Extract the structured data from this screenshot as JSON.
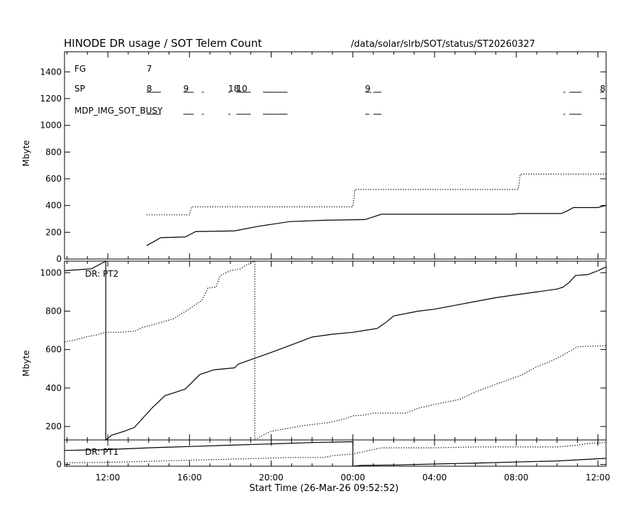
{
  "header": {
    "title": "HINODE DR usage / SOT Telem Count",
    "path": "/data/solar/slrb/SOT/status/ST20260327"
  },
  "x_axis": {
    "label": "Start Time (26-Mar-26 09:52:52)",
    "tick_labels": [
      "12:00",
      "16:00",
      "20:00",
      "00:00",
      "04:00",
      "08:00",
      "12:00"
    ],
    "tick_hours": [
      12,
      16,
      20,
      24,
      28,
      32,
      36
    ],
    "range_hours": [
      9.88,
      36.4
    ]
  },
  "chart_data": [
    {
      "type": "line",
      "panel": "top",
      "ylabel": "Mbyte",
      "ylim": [
        0,
        1550
      ],
      "yticks": [
        0,
        200,
        400,
        600,
        800,
        1000,
        1200,
        1400
      ],
      "grid": false,
      "annotations": {
        "FG": {
          "label": "FG",
          "value_text": "7",
          "value_x_hours": 13.9
        },
        "SP": {
          "label": "SP",
          "items": [
            {
              "text": "8",
              "x_hours": 13.9
            },
            {
              "text": "9",
              "x_hours": 15.7
            },
            {
              "text": "18",
              "x_hours": 17.9
            },
            {
              "text": "10",
              "x_hours": 18.3
            },
            {
              "text": "9",
              "x_hours": 24.6
            },
            {
              "text": "8",
              "x_hours": 36.1
            }
          ]
        },
        "busy_label": "MDP_IMG_SOT_BUSY"
      },
      "series": [
        {
          "style": "solid",
          "points": [
            [
              13.9,
              100
            ],
            [
              14.6,
              160
            ],
            [
              15.8,
              165
            ],
            [
              16.3,
              205
            ],
            [
              18.2,
              210
            ],
            [
              19.4,
              245
            ],
            [
              20.9,
              280
            ],
            [
              22.6,
              290
            ],
            [
              24.6,
              295
            ],
            [
              25.4,
              335
            ],
            [
              31.8,
              335
            ],
            [
              32.1,
              340
            ],
            [
              34.2,
              340
            ],
            [
              34.5,
              360
            ],
            [
              34.8,
              385
            ],
            [
              36.0,
              385
            ],
            [
              36.4,
              400
            ]
          ]
        },
        {
          "style": "dotted",
          "points": [
            [
              13.9,
              330
            ],
            [
              16.0,
              330
            ],
            [
              16.1,
              390
            ],
            [
              24.0,
              390
            ],
            [
              24.1,
              520
            ],
            [
              32.1,
              520
            ],
            [
              32.2,
              635
            ],
            [
              36.4,
              635
            ]
          ]
        }
      ]
    },
    {
      "type": "line",
      "panel": "middle",
      "label": "DR: PT2",
      "ylabel": "Mbyte",
      "ylim": [
        130,
        1060
      ],
      "yticks": [
        200,
        400,
        600,
        800,
        1000
      ],
      "grid": false,
      "series": [
        {
          "style": "solid",
          "points": [
            [
              9.88,
              1010
            ],
            [
              11.2,
              1020
            ],
            [
              11.9,
              1060
            ],
            [
              11.9,
              130
            ],
            [
              12.2,
              155
            ],
            [
              12.8,
              175
            ],
            [
              13.3,
              195
            ],
            [
              14.2,
              300
            ],
            [
              14.8,
              360
            ],
            [
              15.8,
              395
            ],
            [
              16.5,
              470
            ],
            [
              17.2,
              495
            ],
            [
              18.2,
              505
            ],
            [
              18.4,
              525
            ],
            [
              20.0,
              585
            ],
            [
              21.0,
              625
            ],
            [
              22.0,
              665
            ],
            [
              23.0,
              680
            ],
            [
              24.0,
              690
            ],
            [
              24.6,
              700
            ],
            [
              25.2,
              710
            ],
            [
              25.6,
              740
            ],
            [
              26.0,
              775
            ],
            [
              27.2,
              800
            ],
            [
              28.0,
              810
            ],
            [
              29.0,
              830
            ],
            [
              30.0,
              850
            ],
            [
              31.0,
              870
            ],
            [
              32.0,
              885
            ],
            [
              33.0,
              900
            ],
            [
              34.0,
              915
            ],
            [
              34.3,
              925
            ],
            [
              34.6,
              950
            ],
            [
              34.9,
              985
            ],
            [
              35.5,
              990
            ],
            [
              36.0,
              1010
            ],
            [
              36.4,
              1030
            ]
          ]
        },
        {
          "style": "dotted",
          "points": [
            [
              9.88,
              640
            ],
            [
              10.4,
              650
            ],
            [
              10.9,
              665
            ],
            [
              11.4,
              675
            ],
            [
              11.9,
              690
            ],
            [
              12.5,
              690
            ],
            [
              13.3,
              695
            ],
            [
              13.7,
              715
            ],
            [
              14.4,
              735
            ],
            [
              15.2,
              760
            ],
            [
              15.9,
              805
            ],
            [
              16.6,
              855
            ],
            [
              16.9,
              920
            ],
            [
              17.3,
              925
            ],
            [
              17.5,
              985
            ],
            [
              18.0,
              1010
            ],
            [
              18.5,
              1020
            ],
            [
              18.8,
              1040
            ],
            [
              19.2,
              1060
            ],
            [
              19.2,
              130
            ],
            [
              19.6,
              155
            ],
            [
              20.0,
              175
            ],
            [
              20.8,
              190
            ],
            [
              21.6,
              205
            ],
            [
              22.8,
              220
            ],
            [
              23.6,
              240
            ],
            [
              24.0,
              255
            ],
            [
              24.6,
              260
            ],
            [
              25.0,
              270
            ],
            [
              26.6,
              270
            ],
            [
              27.2,
              295
            ],
            [
              28.0,
              315
            ],
            [
              29.2,
              340
            ],
            [
              30.0,
              380
            ],
            [
              31.0,
              420
            ],
            [
              31.4,
              435
            ],
            [
              32.2,
              465
            ],
            [
              33.0,
              510
            ],
            [
              33.6,
              535
            ],
            [
              34.0,
              555
            ],
            [
              34.6,
              590
            ],
            [
              35.0,
              615
            ],
            [
              36.4,
              620
            ]
          ]
        }
      ]
    },
    {
      "type": "line",
      "panel": "bottom",
      "label": "DR: PT1",
      "ylim": [
        -10,
        140
      ],
      "yticks": [
        0
      ],
      "grid": false,
      "series": [
        {
          "style": "solid",
          "points": [
            [
              9.88,
              80
            ],
            [
              11.9,
              85
            ],
            [
              14.0,
              95
            ],
            [
              18.0,
              110
            ],
            [
              22.0,
              125
            ],
            [
              24.0,
              130
            ],
            [
              24.0,
              -10
            ],
            [
              24.4,
              -5
            ],
            [
              26.0,
              -3
            ],
            [
              30.0,
              8
            ],
            [
              34.0,
              20
            ],
            [
              36.4,
              35
            ]
          ]
        },
        {
          "style": "dotted",
          "points": [
            [
              9.88,
              10
            ],
            [
              11.9,
              12
            ],
            [
              14.0,
              18
            ],
            [
              18.0,
              30
            ],
            [
              21.0,
              40
            ],
            [
              22.6,
              40
            ],
            [
              23.0,
              50
            ],
            [
              24.0,
              60
            ],
            [
              25.0,
              85
            ],
            [
              25.4,
              95
            ],
            [
              28.0,
              95
            ],
            [
              30.0,
              100
            ],
            [
              34.0,
              100
            ],
            [
              35.0,
              110
            ],
            [
              35.5,
              120
            ],
            [
              36.4,
              125
            ]
          ]
        }
      ]
    }
  ]
}
